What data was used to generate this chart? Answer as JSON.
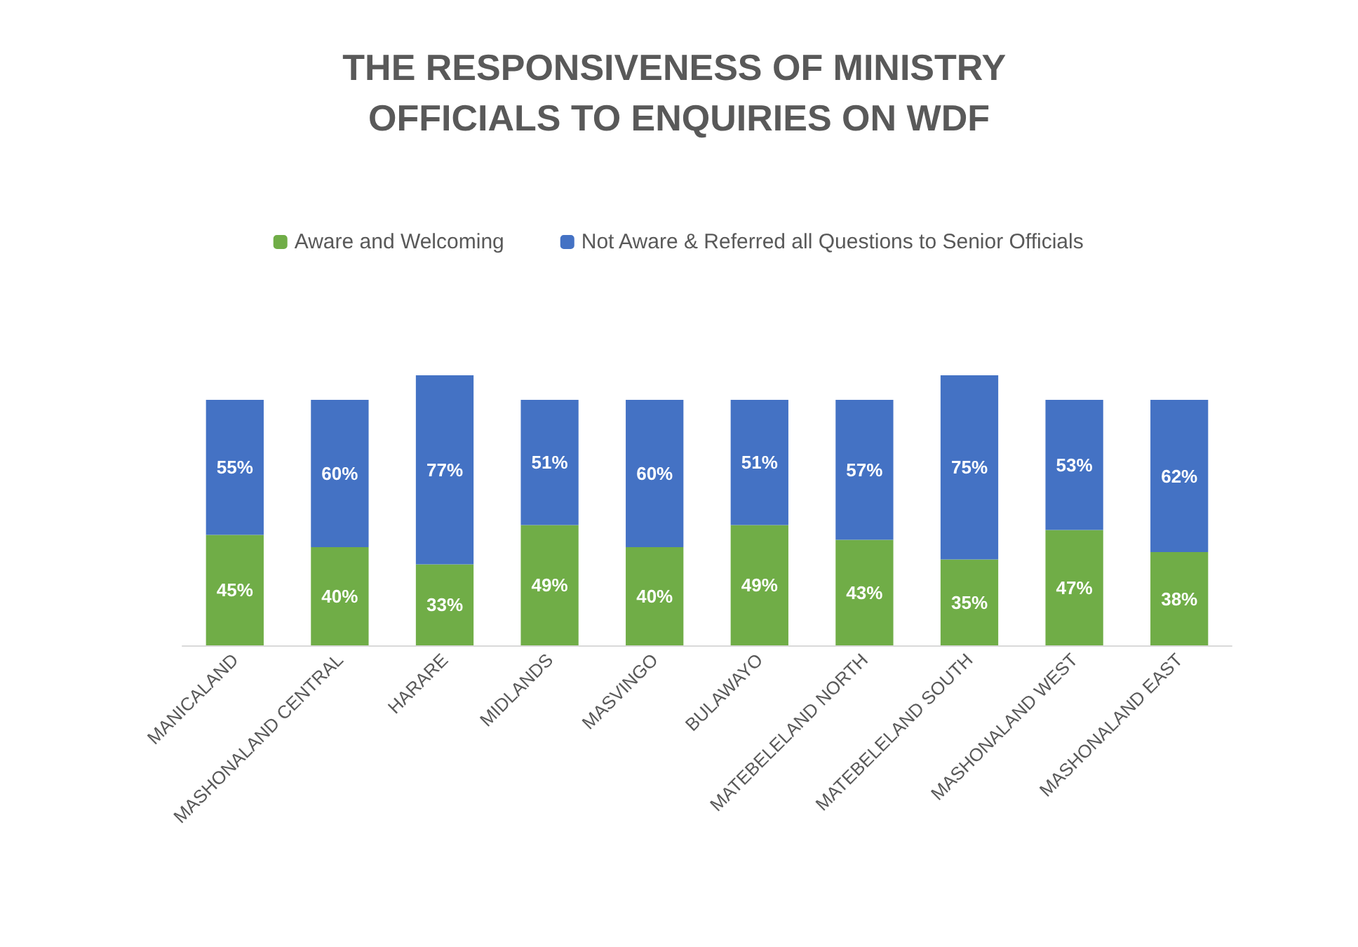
{
  "chart_data": {
    "type": "bar",
    "stacked": true,
    "title": "THE RESPONSIVENESS OF MINISTRY OFFICIALS TO ENQUIRIES ON WDF",
    "categories": [
      "MANICALAND",
      "MASHONALAND CENTRAL",
      "HARARE",
      "MIDLANDS",
      "MASVINGO",
      "BULAWAYO",
      "MATEBELELAND NORTH",
      "MATEBELELAND SOUTH",
      "MASHONALAND WEST",
      "MASHONALAND EAST"
    ],
    "series": [
      {
        "name": "Aware and Welcoming",
        "color": "#70ad47",
        "values": [
          45,
          40,
          33,
          49,
          40,
          49,
          43,
          35,
          47,
          38
        ],
        "value_labels": [
          "45%",
          "40%",
          "33%",
          "49%",
          "40%",
          "49%",
          "43%",
          "35%",
          "47%",
          "38%"
        ]
      },
      {
        "name": "Not Aware & Referred all Questions to Senior Officials",
        "color": "#4472c4",
        "values": [
          55,
          60,
          77,
          51,
          60,
          51,
          57,
          75,
          53,
          62
        ],
        "value_labels": [
          "55%",
          "60%",
          "77%",
          "51%",
          "60%",
          "51%",
          "57%",
          "75%",
          "53%",
          "62%"
        ]
      }
    ],
    "legend": "top"
  }
}
